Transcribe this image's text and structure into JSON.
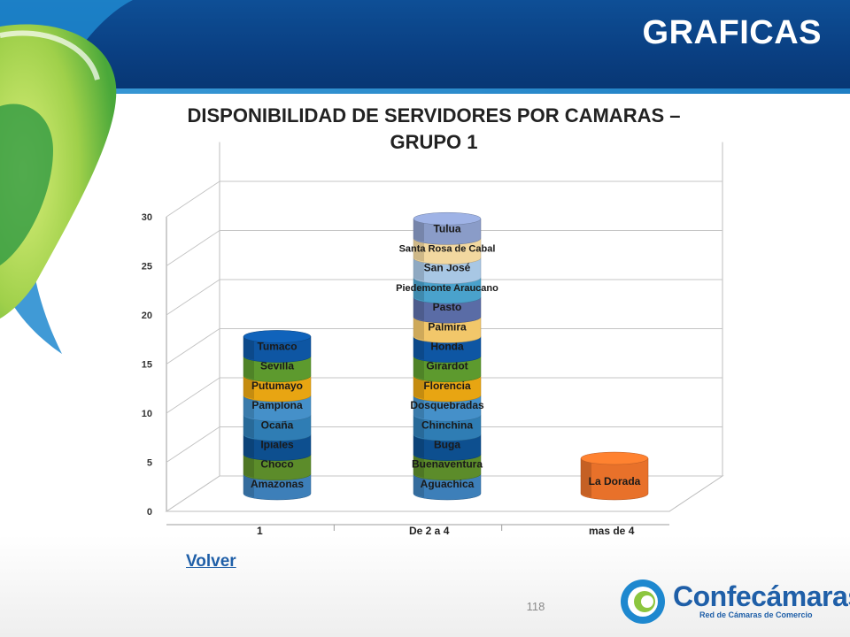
{
  "header": {
    "title": "GRAFICAS"
  },
  "chart_data": {
    "type": "bar",
    "title": "DISPONIBILIDAD DE SERVIDORES POR CAMARAS –",
    "subtitle": "GRUPO 1",
    "categories": [
      "1",
      "De 2 a 4",
      "mas de 4"
    ],
    "stacks": [
      [
        "Amazonas",
        "Choco",
        "Ipiales",
        "Ocaña",
        "Pamplona",
        "Putumayo",
        "Sevilla",
        "Tumaco"
      ],
      [
        "Aguachica",
        "Buenaventura",
        "Buga",
        "Chinchina",
        "Dosquebradas",
        "Florencia",
        "Girardot",
        "Honda",
        "Palmira",
        "Pasto",
        "Piedemonte Araucano",
        "San José",
        "Santa Rosa de Cabal",
        "Tulua"
      ],
      [
        "La Dorada"
      ]
    ],
    "segment_value": 1,
    "segment_height": 2,
    "yticks": [
      0,
      5,
      10,
      15,
      20,
      25,
      30
    ],
    "ylim": [
      0,
      30
    ],
    "grid": true,
    "colors": [
      "#3d7fb9",
      "#5c8c2a",
      "#0d4f8f",
      "#2f7db4",
      "#4590c9",
      "#e8a512",
      "#5d9a2e",
      "#0e56a3",
      "#f2c76a",
      "#5a6ca6",
      "#4aa2cc",
      "#a8c7e4",
      "#f2d8a0",
      "#8a9cc8"
    ],
    "highlight_color": "#e8712a"
  },
  "footer": {
    "link": "Volver",
    "page": "118"
  },
  "logo": {
    "name": "Confecámaras",
    "tagline": "Red de Cámaras de Comercio"
  }
}
